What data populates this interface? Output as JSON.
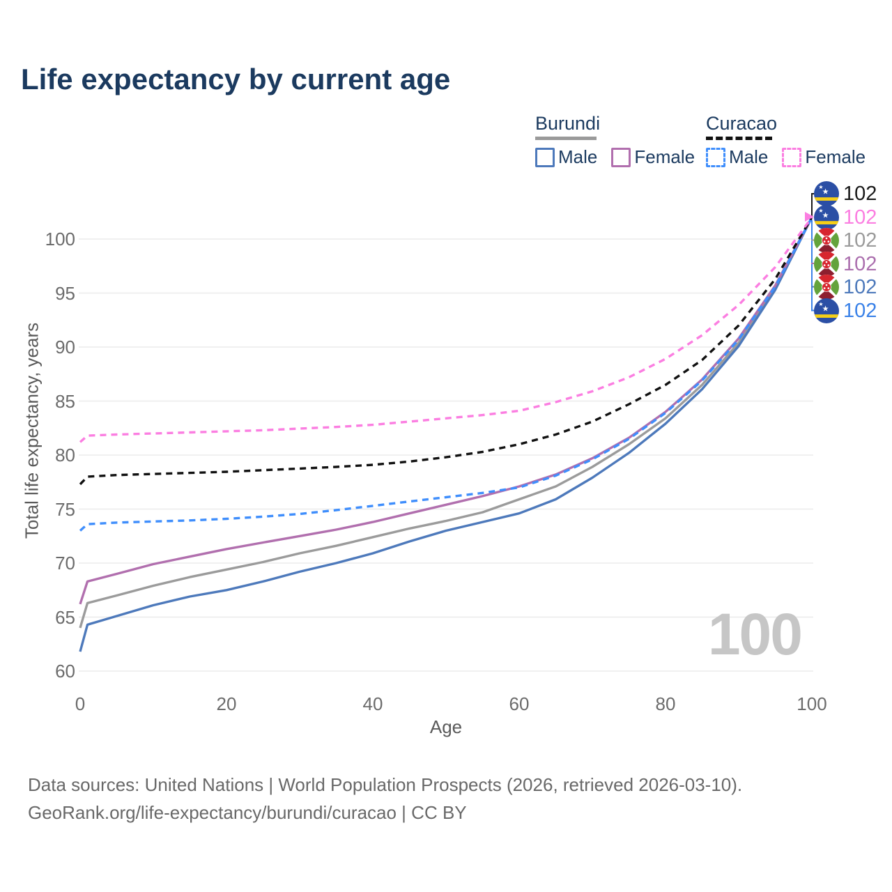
{
  "header": {
    "title": "Life expectancy by current age"
  },
  "legend": {
    "groups": [
      {
        "label": "Burundi",
        "underline_style": "solid",
        "underline_color": "#9a9a9a",
        "items": [
          {
            "label": "Male",
            "line_style": "solid",
            "color": "#4d79bb"
          },
          {
            "label": "Female",
            "line_style": "solid",
            "color": "#b16fae"
          }
        ]
      },
      {
        "label": "Curacao",
        "underline_style": "dashed",
        "underline_color": "#111111",
        "items": [
          {
            "label": "Male",
            "line_style": "dashed",
            "color": "#3f8efc"
          },
          {
            "label": "Female",
            "line_style": "dashed",
            "color": "#fb7ee1"
          }
        ]
      }
    ]
  },
  "chart_data": {
    "type": "line",
    "title": "Life expectancy by current age",
    "xlabel": "Age",
    "ylabel": "Total life expectancy, years",
    "xlim": [
      0,
      100
    ],
    "ylim": [
      60,
      103
    ],
    "x_ticks": [
      0,
      20,
      40,
      60,
      80,
      100
    ],
    "y_ticks": [
      60,
      65,
      70,
      75,
      80,
      85,
      90,
      95,
      100
    ],
    "grid": "horizontal",
    "legend_position": "top-right",
    "watermark": "100",
    "series": [
      {
        "name": "Burundi Both sexes",
        "country": "Burundi",
        "sex": "Both",
        "line_style": "solid",
        "color": "#9b9b9b",
        "points": [
          [
            0,
            64.0
          ],
          [
            1,
            66.3
          ],
          [
            5,
            67.0
          ],
          [
            10,
            67.9
          ],
          [
            15,
            68.7
          ],
          [
            20,
            69.4
          ],
          [
            25,
            70.1
          ],
          [
            30,
            70.9
          ],
          [
            35,
            71.6
          ],
          [
            40,
            72.4
          ],
          [
            45,
            73.2
          ],
          [
            50,
            73.9
          ],
          [
            55,
            74.7
          ],
          [
            60,
            75.9
          ],
          [
            65,
            77.1
          ],
          [
            70,
            78.9
          ],
          [
            75,
            81.0
          ],
          [
            80,
            83.4
          ],
          [
            85,
            86.5
          ],
          [
            90,
            90.4
          ],
          [
            95,
            95.5
          ],
          [
            100,
            102
          ]
        ]
      },
      {
        "name": "Burundi Male",
        "country": "Burundi",
        "sex": "Male",
        "line_style": "solid",
        "color": "#4d79bb",
        "points": [
          [
            0,
            61.8
          ],
          [
            1,
            64.3
          ],
          [
            5,
            65.1
          ],
          [
            10,
            66.1
          ],
          [
            15,
            66.9
          ],
          [
            20,
            67.5
          ],
          [
            25,
            68.3
          ],
          [
            30,
            69.2
          ],
          [
            35,
            70.0
          ],
          [
            40,
            70.9
          ],
          [
            45,
            72.0
          ],
          [
            50,
            73.0
          ],
          [
            55,
            73.8
          ],
          [
            60,
            74.6
          ],
          [
            65,
            75.9
          ],
          [
            70,
            77.9
          ],
          [
            75,
            80.2
          ],
          [
            80,
            82.9
          ],
          [
            85,
            86.1
          ],
          [
            90,
            90.1
          ],
          [
            95,
            95.3
          ],
          [
            100,
            102
          ]
        ]
      },
      {
        "name": "Burundi Female",
        "country": "Burundi",
        "sex": "Female",
        "line_style": "solid",
        "color": "#b16fae",
        "points": [
          [
            0,
            66.2
          ],
          [
            1,
            68.3
          ],
          [
            5,
            69.0
          ],
          [
            10,
            69.9
          ],
          [
            15,
            70.6
          ],
          [
            20,
            71.3
          ],
          [
            25,
            71.9
          ],
          [
            30,
            72.5
          ],
          [
            35,
            73.1
          ],
          [
            40,
            73.8
          ],
          [
            45,
            74.6
          ],
          [
            50,
            75.4
          ],
          [
            55,
            76.2
          ],
          [
            60,
            77.1
          ],
          [
            65,
            78.2
          ],
          [
            70,
            79.7
          ],
          [
            75,
            81.6
          ],
          [
            80,
            84.0
          ],
          [
            85,
            87.0
          ],
          [
            90,
            90.8
          ],
          [
            95,
            95.7
          ],
          [
            100,
            102
          ]
        ]
      },
      {
        "name": "Curacao Male",
        "country": "Curacao",
        "sex": "Male",
        "line_style": "dashed",
        "color": "#3f8efc",
        "points": [
          [
            0,
            73.0
          ],
          [
            1,
            73.6
          ],
          [
            5,
            73.75
          ],
          [
            10,
            73.85
          ],
          [
            15,
            73.95
          ],
          [
            20,
            74.1
          ],
          [
            25,
            74.3
          ],
          [
            30,
            74.55
          ],
          [
            35,
            74.9
          ],
          [
            40,
            75.3
          ],
          [
            45,
            75.7
          ],
          [
            50,
            76.1
          ],
          [
            55,
            76.5
          ],
          [
            60,
            77.0
          ],
          [
            65,
            78.1
          ],
          [
            70,
            79.6
          ],
          [
            75,
            81.5
          ],
          [
            80,
            83.9
          ],
          [
            85,
            86.9
          ],
          [
            90,
            90.7
          ],
          [
            95,
            95.6
          ],
          [
            100,
            102
          ]
        ]
      },
      {
        "name": "Curacao Both sexes",
        "country": "Curacao",
        "sex": "Both",
        "line_style": "dashed",
        "color": "#111111",
        "points": [
          [
            0,
            77.3
          ],
          [
            1,
            78.0
          ],
          [
            5,
            78.15
          ],
          [
            10,
            78.25
          ],
          [
            15,
            78.35
          ],
          [
            20,
            78.45
          ],
          [
            25,
            78.6
          ],
          [
            30,
            78.75
          ],
          [
            35,
            78.9
          ],
          [
            40,
            79.1
          ],
          [
            45,
            79.4
          ],
          [
            50,
            79.8
          ],
          [
            55,
            80.3
          ],
          [
            60,
            81.0
          ],
          [
            65,
            81.9
          ],
          [
            70,
            83.1
          ],
          [
            75,
            84.7
          ],
          [
            80,
            86.5
          ],
          [
            85,
            88.8
          ],
          [
            90,
            92.0
          ],
          [
            95,
            96.3
          ],
          [
            100,
            102
          ]
        ]
      },
      {
        "name": "Curacao Female",
        "country": "Curacao",
        "sex": "Female",
        "line_style": "dashed",
        "color": "#fb7ee1",
        "points": [
          [
            0,
            81.2
          ],
          [
            1,
            81.8
          ],
          [
            5,
            81.9
          ],
          [
            10,
            82.0
          ],
          [
            15,
            82.1
          ],
          [
            20,
            82.2
          ],
          [
            25,
            82.3
          ],
          [
            30,
            82.45
          ],
          [
            35,
            82.6
          ],
          [
            40,
            82.8
          ],
          [
            45,
            83.1
          ],
          [
            50,
            83.4
          ],
          [
            55,
            83.7
          ],
          [
            60,
            84.1
          ],
          [
            65,
            84.9
          ],
          [
            70,
            85.9
          ],
          [
            75,
            87.2
          ],
          [
            80,
            88.9
          ],
          [
            85,
            91.1
          ],
          [
            90,
            93.9
          ],
          [
            95,
            97.4
          ],
          [
            100,
            102
          ]
        ]
      }
    ],
    "end_labels": [
      {
        "value": 102,
        "color": "#1a1a1a",
        "flag": "curacao",
        "series": "Curacao Both sexes"
      },
      {
        "value": 102,
        "color": "#fb7ee1",
        "flag": "curacao",
        "series": "Curacao Female"
      },
      {
        "value": 102,
        "color": "#9b9b9b",
        "flag": "burundi",
        "series": "Burundi Both sexes"
      },
      {
        "value": 102,
        "color": "#ab6fae",
        "flag": "burundi",
        "series": "Burundi Female"
      },
      {
        "value": 102,
        "color": "#4d79bb",
        "flag": "burundi",
        "series": "Burundi Male"
      },
      {
        "value": 102,
        "color": "#3b82e8",
        "flag": "curacao",
        "series": "Curacao Male"
      }
    ]
  },
  "footer": {
    "line1": "Data sources: United Nations | World Population Prospects (2026, retrieved 2026-03-10).",
    "line2": "GeoRank.org/life-expectancy/burundi/curacao | CC BY"
  }
}
